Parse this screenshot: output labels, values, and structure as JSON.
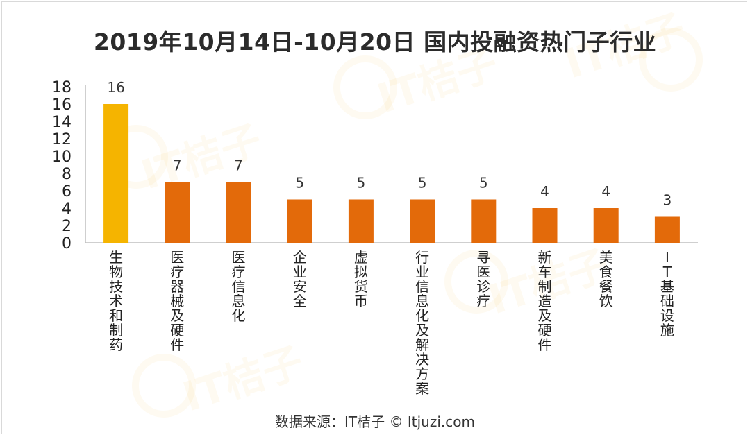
{
  "title": "2019年10月14日-10月20日 国内投融资热门子行业",
  "watermark_text": "IT桔子",
  "source": "数据来源：IT桔子 © Itjuzi.com",
  "colors": {
    "highlight": "#F5B400",
    "bar": "#E36A0A",
    "axis": "#BFBFBF",
    "watermark": "#F3A712"
  },
  "chart_data": {
    "type": "bar",
    "title": "2019年10月14日-10月20日 国内投融资热门子行业",
    "categories": [
      "生物技术和制药",
      "医疗器械及硬件",
      "医疗信息化",
      "企业安全",
      "虚拟货币",
      "行业信息化及解决方案",
      "寻医诊疗",
      "新车制造及硬件",
      "美食餐饮",
      "IT基础设施"
    ],
    "values": [
      16,
      7,
      7,
      5,
      5,
      5,
      5,
      4,
      4,
      3
    ],
    "highlight_index": 0,
    "yticks": [
      0,
      2,
      4,
      6,
      8,
      10,
      12,
      14,
      16,
      18
    ],
    "ylim": [
      0,
      18
    ],
    "xlabel": "",
    "ylabel": "",
    "grid": false,
    "legend": "none",
    "category_label_orientation": "vertical"
  }
}
